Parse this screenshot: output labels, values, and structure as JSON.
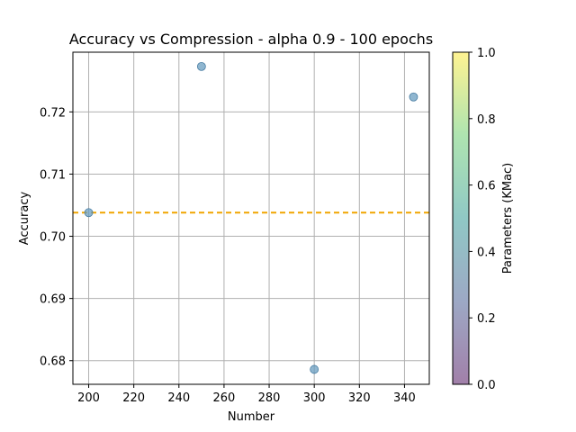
{
  "chart_data": {
    "type": "scatter",
    "title": "Accuracy vs Compression - alpha 0.9 - 100 epochs",
    "xlabel": "Number",
    "ylabel": "Accuracy",
    "xlim": [
      193,
      351
    ],
    "ylim": [
      0.6762,
      0.7296
    ],
    "xticks": [
      200,
      220,
      240,
      260,
      280,
      300,
      320,
      340
    ],
    "yticks": [
      0.68,
      0.69,
      0.7,
      0.71,
      0.72
    ],
    "ytick_labels": [
      "0.68",
      "0.69",
      "0.70",
      "0.71",
      "0.72"
    ],
    "grid": true,
    "points": [
      {
        "x": 200,
        "y": 0.7038
      },
      {
        "x": 250,
        "y": 0.7273
      },
      {
        "x": 300,
        "y": 0.6786
      },
      {
        "x": 344,
        "y": 0.7224
      }
    ],
    "point_color": "#6a9dc0",
    "reference_line": {
      "y": 0.7038,
      "color": "#f0a500",
      "style": "dashed"
    },
    "colorbar": {
      "label": "Parameters (KMac)",
      "range": [
        0.0,
        1.0
      ],
      "ticks": [
        0.0,
        0.2,
        0.4,
        0.6,
        0.8,
        1.0
      ],
      "tick_labels": [
        "0.0",
        "0.2",
        "0.4",
        "0.6",
        "0.8",
        "1.0"
      ],
      "colormap": [
        "#440154",
        "#3b528b",
        "#21918c",
        "#5ec962",
        "#fde725"
      ]
    }
  }
}
